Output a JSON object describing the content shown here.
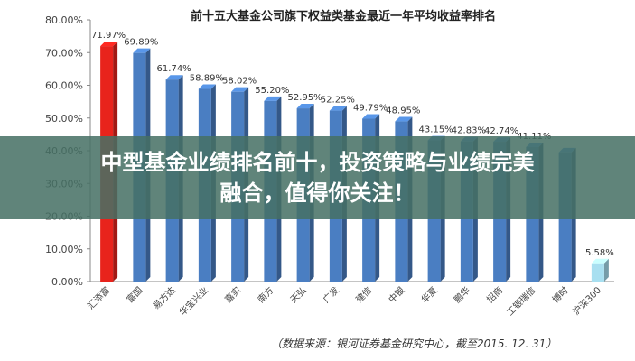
{
  "chart_data": {
    "type": "bar",
    "title": "前十五大基金公司旗下权益类基金最近一年平均收益率排名",
    "categories": [
      "汇添富",
      "富国",
      "易方达",
      "华宝兴业",
      "嘉实",
      "南方",
      "天弘",
      "广发",
      "建信",
      "中银",
      "华夏",
      "鹏华",
      "招商",
      "工银瑞信",
      "博时",
      "沪深300"
    ],
    "values": [
      71.97,
      69.89,
      61.74,
      58.89,
      58.02,
      55.2,
      52.95,
      52.25,
      49.79,
      48.95,
      43.15,
      42.83,
      42.74,
      41.11,
      39.5,
      5.58
    ],
    "data_labels": [
      "71.97%",
      "69.89%",
      "61.74%",
      "58.89%",
      "58.02%",
      "55.20%",
      "52.95%",
      "52.25%",
      "49.79%",
      "48.95%",
      "43.15%",
      "42.83%",
      "42.74%",
      "41.11%",
      "",
      "5.58%"
    ],
    "bar_colors": [
      "#e8231c",
      "#4a7ec2",
      "#4a7ec2",
      "#4a7ec2",
      "#4a7ec2",
      "#4a7ec2",
      "#4a7ec2",
      "#4a7ec2",
      "#4a7ec2",
      "#4a7ec2",
      "#4a7ec2",
      "#4a7ec2",
      "#4a7ec2",
      "#4a7ec2",
      "#4a7ec2",
      "#a8dff0"
    ],
    "yticks": [
      "0.00%",
      "10.00%",
      "20.00%",
      "30.00%",
      "40.00%",
      "50.00%",
      "60.00%",
      "70.00%",
      "80.00%"
    ],
    "ylim": [
      0,
      80
    ],
    "grid": false
  },
  "overlay": {
    "line1": "中型基金业绩排名前十，投资策略与业绩完美",
    "line2": "融合，值得你关注！"
  },
  "source_note": "（数据来源：银河证券基金研究中心，截至2015. 12. 31）"
}
